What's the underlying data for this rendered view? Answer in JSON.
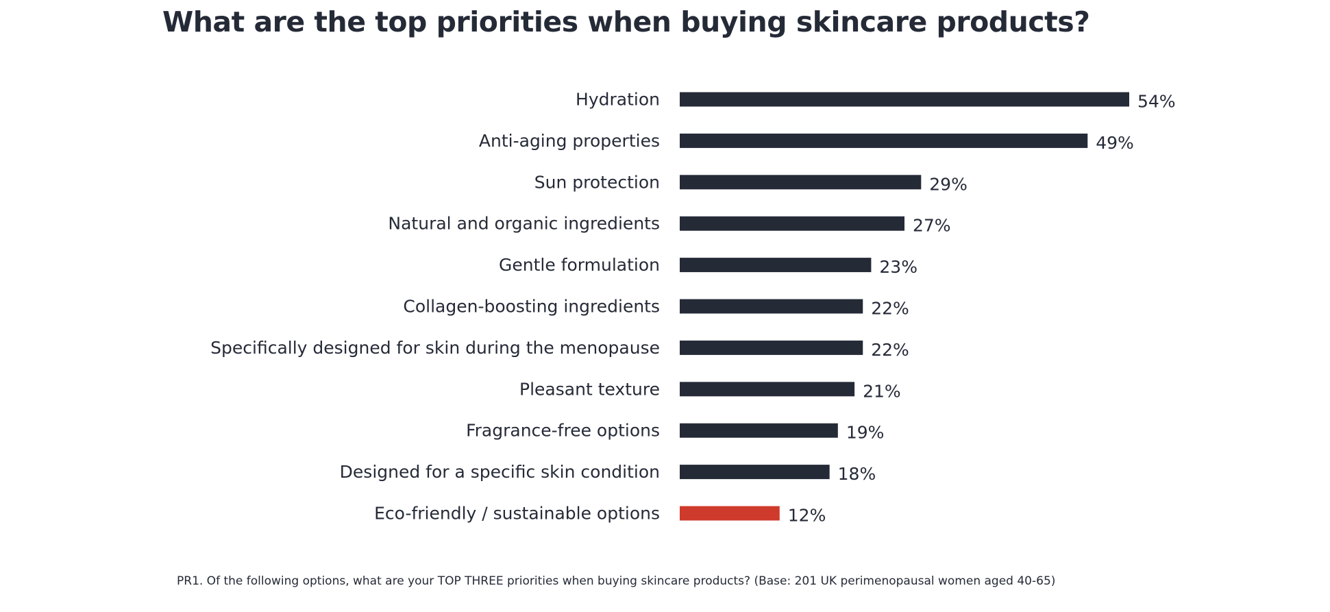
{
  "title": "What are the top priorities when buying skincare products?",
  "footnote": "PR1. Of the following options, what are your TOP THREE priorities when buying skincare products? (Base: 201 UK perimenopausal women aged 40-65)",
  "colors": {
    "bar": "#252a37",
    "highlight": "#ce3a2c",
    "text": "#252a37",
    "background": "#ffffff"
  },
  "chart_data": {
    "type": "bar",
    "orientation": "horizontal",
    "title": "What are the top priorities when buying skincare products?",
    "xlabel": "",
    "ylabel": "",
    "unit": "%",
    "xlim": [
      0,
      54
    ],
    "grid": false,
    "legend": "none",
    "categories": [
      "Hydration",
      "Anti-aging properties",
      "Sun protection",
      "Natural and organic ingredients",
      "Gentle formulation",
      "Collagen-boosting ingredients",
      "Specifically designed for skin during the menopause",
      "Pleasant texture",
      "Fragrance-free options",
      "Designed for a specific skin condition",
      "Eco-friendly / sustainable options"
    ],
    "values": [
      54,
      49,
      29,
      27,
      23,
      22,
      22,
      21,
      19,
      18,
      12
    ],
    "value_labels": [
      "54%",
      "49%",
      "29%",
      "27%",
      "23%",
      "22%",
      "22%",
      "21%",
      "19%",
      "18%",
      "12%"
    ],
    "highlighted_category": "Eco-friendly / sustainable options"
  }
}
